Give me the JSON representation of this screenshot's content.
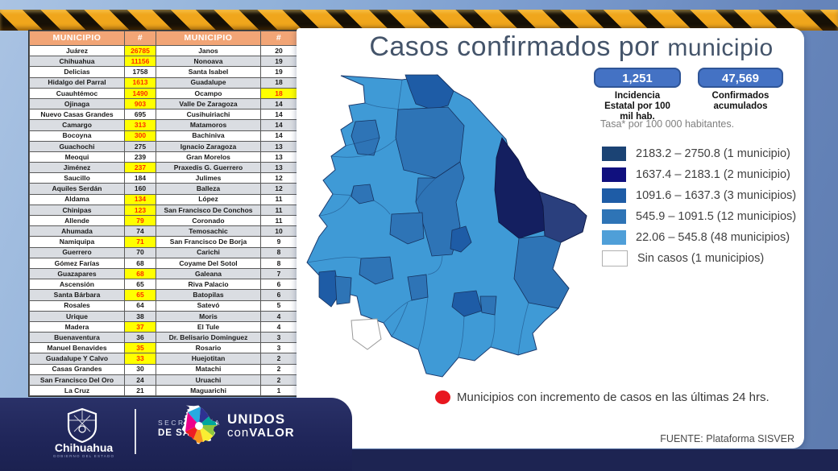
{
  "title": {
    "part1": "Casos confirmados por",
    "part2": "municipio"
  },
  "table": {
    "headers": [
      "MUNICIPIO",
      "#",
      "MUNICIPIO",
      "#"
    ],
    "rows": [
      [
        "Juárez",
        "26785",
        true,
        "Janos",
        "20",
        false
      ],
      [
        "Chihuahua",
        "11156",
        true,
        "Nonoava",
        "19",
        false
      ],
      [
        "Delicias",
        "1758",
        false,
        "Santa Isabel",
        "19",
        false
      ],
      [
        "Hidalgo del Parral",
        "1613",
        true,
        "Guadalupe",
        "18",
        false
      ],
      [
        "Cuauhtémoc",
        "1490",
        true,
        "Ocampo",
        "18",
        true
      ],
      [
        "Ojinaga",
        "903",
        true,
        "Valle De Zaragoza",
        "14",
        false
      ],
      [
        "Nuevo Casas Grandes",
        "695",
        false,
        "Cusihuiriachi",
        "14",
        false
      ],
      [
        "Camargo",
        "313",
        true,
        "Matamoros",
        "14",
        false
      ],
      [
        "Bocoyna",
        "300",
        true,
        "Bachiniva",
        "14",
        false
      ],
      [
        "Guachochi",
        "275",
        false,
        "Ignacio Zaragoza",
        "13",
        false
      ],
      [
        "Meoqui",
        "239",
        false,
        "Gran Morelos",
        "13",
        false
      ],
      [
        "Jiménez",
        "237",
        true,
        "Praxedis G. Guerrero",
        "13",
        false
      ],
      [
        "Saucillo",
        "184",
        false,
        "Julimes",
        "12",
        false
      ],
      [
        "Aquiles Serdán",
        "160",
        false,
        "Balleza",
        "12",
        false
      ],
      [
        "Aldama",
        "134",
        true,
        "López",
        "11",
        false
      ],
      [
        "Chinipas",
        "123",
        true,
        "San Francisco De Conchos",
        "11",
        false
      ],
      [
        "Allende",
        "79",
        true,
        "Coronado",
        "11",
        false
      ],
      [
        "Ahumada",
        "74",
        false,
        "Temosachic",
        "10",
        false
      ],
      [
        "Namiquipa",
        "71",
        true,
        "San Francisco De Borja",
        "9",
        false
      ],
      [
        "Guerrero",
        "70",
        false,
        "Carichi",
        "8",
        false
      ],
      [
        "Gómez Farías",
        "68",
        false,
        "Coyame Del Sotol",
        "8",
        false
      ],
      [
        "Guazapares",
        "68",
        true,
        "Galeana",
        "7",
        false
      ],
      [
        "Ascensión",
        "65",
        false,
        "Riva Palacio",
        "6",
        false
      ],
      [
        "Santa Bárbara",
        "65",
        true,
        "Batopilas",
        "6",
        false
      ],
      [
        "Rosales",
        "64",
        false,
        "Satevó",
        "5",
        false
      ],
      [
        "Urique",
        "38",
        false,
        "Moris",
        "4",
        false
      ],
      [
        "Madera",
        "37",
        true,
        "El Tule",
        "4",
        false
      ],
      [
        "Buenaventura",
        "36",
        false,
        "Dr. Belisario Dominguez",
        "3",
        false
      ],
      [
        "Manuel Benavides",
        "35",
        true,
        "Rosario",
        "3",
        false
      ],
      [
        "Guadalupe Y Calvo",
        "33",
        true,
        "Huejotitan",
        "2",
        false
      ],
      [
        "Casas Grandes",
        "30",
        false,
        "Matachi",
        "2",
        false
      ],
      [
        "San Francisco Del Oro",
        "24",
        false,
        "Uruachi",
        "2",
        false
      ],
      [
        "La Cruz",
        "21",
        false,
        "Maguarichi",
        "1",
        false
      ]
    ]
  },
  "stats": [
    {
      "value": "1,251",
      "label_lines": [
        "Incidencia",
        "Estatal por 100",
        "mil hab."
      ]
    },
    {
      "value": "47,569",
      "label_lines": [
        "Confirmados",
        "acumulados"
      ]
    }
  ],
  "footnote": "Tasa* por 100 000 habitantes.",
  "legend": {
    "items": [
      {
        "color": "#1b4374",
        "label": "2183.2 – 2750.8 (1 municipio)"
      },
      {
        "color": "#10107e",
        "label": "1637.4 – 2183.1 (2 municipio)"
      },
      {
        "color": "#1e5ca6",
        "label": "1091.6 – 1637.3 (3 municipios)"
      },
      {
        "color": "#2e74b6",
        "label": "545.9 – 1091.5 (12 municipios)"
      },
      {
        "color": "#4f9fd8",
        "label": "22.06 – 545.8 (48 municipios)"
      },
      {
        "color": "#ffffff",
        "label": "Sin casos  (1 municipios)"
      }
    ]
  },
  "map": {
    "base": "#3f9ad6",
    "range1": "#2a3f7d",
    "range2": "#141f60",
    "range3": "#1e5ca6",
    "range4": "#2e74b6",
    "border": "#1c3a6e",
    "sin_casos": "#ffffff"
  },
  "note": "Municipios con incremento de casos en las últimas 24 hrs.",
  "note_dot_color": "#e8171f",
  "fuente": "FUENTE: Plataforma SISVER",
  "footer": {
    "brand": "Chihuahua",
    "brand_sub": "GOBIERNO DEL ESTADO",
    "secretaria_line1": "SECRETARÍA",
    "secretaria_line2": "DE SALUD",
    "unidos_line1": "UNIDOS",
    "unidos_con": "con",
    "unidos_valor": "VALOR",
    "logo_colors": [
      "#27aae1",
      "#2e3192",
      "#00a79d",
      "#8dc63f",
      "#f9ed32",
      "#f7941d",
      "#ed1c24",
      "#ec008c"
    ]
  },
  "colors": {
    "accent_box": "#4472c4",
    "accent_box_border": "#2f5597",
    "title": "#44546a",
    "caution_yellow": "#f0a61c",
    "footer_navy": "#1d2452",
    "table_header_bg": "#f2a576",
    "highlight_bg": "#ffff00",
    "highlight_text": "#fe2b00"
  }
}
